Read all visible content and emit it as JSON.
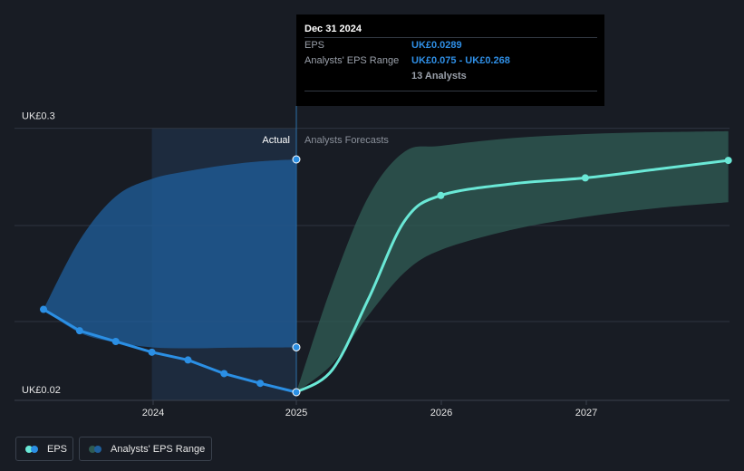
{
  "tooltip": {
    "date": "Dec 31 2024",
    "rows": [
      {
        "label": "EPS",
        "value": "UK£0.0289"
      },
      {
        "label": "Analysts' EPS Range",
        "value": "UK£0.075 - UK£0.268"
      },
      {
        "label": "",
        "value": "13 Analysts"
      }
    ]
  },
  "legend": {
    "eps_label": "EPS",
    "range_label": "Analysts' EPS Range",
    "eps_icon": "eps-legend-icon",
    "range_icon": "range-legend-icon"
  },
  "colors": {
    "background": "#181c24",
    "actual_region": "#1d2b3e",
    "eps_actual": "#2b8fe4",
    "actual_range_fill": "#1f5f9c",
    "forecast_line": "#6ae8d6",
    "forecast_range_fill": "#2f5a52",
    "grid": "#2e3440",
    "tooltip_value": "#2f8fe6"
  },
  "chart_data": {
    "type": "line",
    "y_tick_labels": [
      "UK£0.3",
      "UK£0.02"
    ],
    "ylim": [
      0.02,
      0.3
    ],
    "x_tick_labels": [
      "2024",
      "2025",
      "2026",
      "2027"
    ],
    "xlim": [
      2023.22,
      2027.99
    ],
    "section_labels": {
      "actual": "Actual",
      "forecast": "Analysts Forecasts"
    },
    "divider_x": 2025.0,
    "grid": true,
    "series": [
      {
        "name": "EPS",
        "kind": "actual",
        "x": [
          2023.25,
          2023.5,
          2023.75,
          2024.0,
          2024.25,
          2024.5,
          2024.75,
          2025.0
        ],
        "y": [
          0.114,
          0.092,
          0.081,
          0.07,
          0.062,
          0.048,
          0.038,
          0.0289
        ]
      },
      {
        "name": "Analysts' EPS Range",
        "kind": "actual_range",
        "x": [
          2023.25,
          2023.5,
          2023.75,
          2024.0,
          2024.25,
          2024.5,
          2024.75,
          2025.0
        ],
        "low": [
          0.114,
          0.09,
          0.08,
          0.075,
          0.074,
          0.0745,
          0.0748,
          0.075
        ],
        "high": [
          0.114,
          0.185,
          0.23,
          0.248,
          0.256,
          0.262,
          0.266,
          0.268
        ]
      },
      {
        "name": "EPS",
        "kind": "forecast",
        "x": [
          2025.0,
          2025.25,
          2025.5,
          2025.75,
          2026.0,
          2026.5,
          2027.0,
          2027.5,
          2027.99
        ],
        "y": [
          0.0289,
          0.052,
          0.125,
          0.205,
          0.231,
          0.243,
          0.249,
          0.258,
          0.267
        ]
      },
      {
        "name": "Analysts' EPS Range",
        "kind": "forecast_range",
        "x": [
          2025.0,
          2025.25,
          2025.5,
          2025.75,
          2026.0,
          2026.5,
          2027.0,
          2027.5,
          2027.99
        ],
        "low": [
          0.0289,
          0.058,
          0.108,
          0.152,
          0.175,
          0.196,
          0.209,
          0.218,
          0.224
        ],
        "high": [
          0.0289,
          0.14,
          0.23,
          0.276,
          0.282,
          0.29,
          0.294,
          0.296,
          0.297
        ]
      }
    ],
    "markers": {
      "actual": [
        2023.25,
        2023.5,
        2023.75,
        2024.0,
        2024.25,
        2024.5,
        2024.75,
        2025.0
      ],
      "forecast": [
        2026.0,
        2027.0,
        2027.99
      ],
      "range_end": [
        0.268,
        0.075
      ]
    }
  }
}
